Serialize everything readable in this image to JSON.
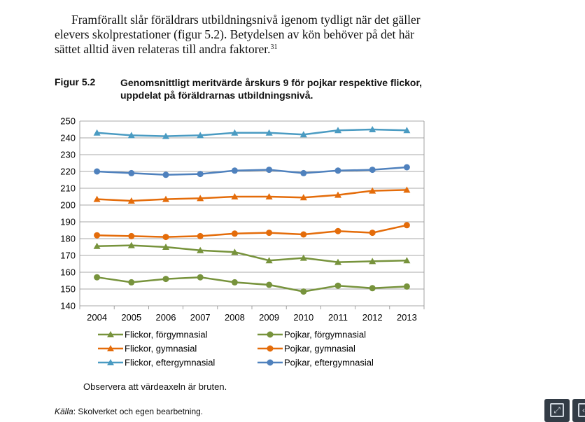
{
  "intro": {
    "text": "Framförallt slår föräldrars utbildningsnivå igenom tydligt när det gäller elevers skolprestationer (figur 5.2). Betydelsen av kön behöver på det här sättet alltid även relateras till andra faktorer.",
    "footnote": "31"
  },
  "figure": {
    "number": "Figur 5.2",
    "title": "Genomsnittligt meritvärde årskurs 9 för pojkar respektive flickor, uppdelat på föräldrarnas utbildningsnivå."
  },
  "note": "Observera att värdeaxeln är bruten.",
  "source": {
    "label": "Källa",
    "text": ": Skolverket och egen bearbetning."
  },
  "toolbar": {
    "expand_icon": "expand-icon",
    "back_icon": "back-icon"
  },
  "chart_data": {
    "type": "line",
    "title": "",
    "xlabel": "",
    "ylabel": "",
    "x": [
      "2004",
      "2005",
      "2006",
      "2007",
      "2008",
      "2009",
      "2010",
      "2011",
      "2012",
      "2013"
    ],
    "ylim": [
      140,
      250
    ],
    "yticks": [
      140,
      150,
      160,
      170,
      180,
      190,
      200,
      210,
      220,
      230,
      240,
      250
    ],
    "grid": true,
    "legend_position": "bottom",
    "series": [
      {
        "name": "Flickor, förgymnasial",
        "color": "#77933c",
        "marker": "triangle",
        "values": [
          175.5,
          176,
          175,
          173,
          172,
          167,
          168.5,
          166,
          166.5,
          167
        ]
      },
      {
        "name": "Pojkar, förgymnasial",
        "color": "#77933c",
        "marker": "circle",
        "values": [
          157,
          154,
          156,
          157,
          154,
          152.5,
          148.5,
          152,
          150.5,
          151.5
        ]
      },
      {
        "name": "Flickor, gymnasial",
        "color": "#e46c0a",
        "marker": "triangle",
        "values": [
          203.5,
          202.5,
          203.5,
          204,
          205,
          205,
          204.5,
          206,
          208.5,
          209
        ]
      },
      {
        "name": "Pojkar, gymnasial",
        "color": "#e46c0a",
        "marker": "circle",
        "values": [
          182,
          181.5,
          181,
          181.5,
          183,
          183.5,
          182.5,
          184.5,
          183.5,
          188
        ]
      },
      {
        "name": "Flickor, eftergymnasial",
        "color": "#4a9bc2",
        "marker": "triangle",
        "values": [
          243,
          241.5,
          241,
          241.5,
          243,
          243,
          242,
          244.5,
          245,
          244.5
        ]
      },
      {
        "name": "Pojkar, eftergymnasial",
        "color": "#4f81bd",
        "marker": "circle",
        "values": [
          220,
          219,
          218,
          218.5,
          220.5,
          221,
          219,
          220.5,
          221,
          222.5
        ]
      }
    ]
  }
}
